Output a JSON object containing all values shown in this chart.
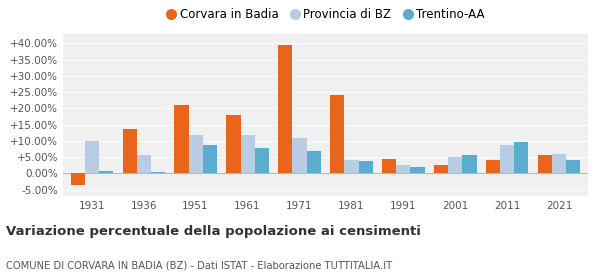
{
  "years": [
    1931,
    1936,
    1951,
    1961,
    1971,
    1981,
    1991,
    2001,
    2011,
    2021
  ],
  "corvara": [
    -3.5,
    13.5,
    21.0,
    18.0,
    39.5,
    24.0,
    4.5,
    2.5,
    4.0,
    5.5
  ],
  "provincia_bz": [
    9.8,
    5.7,
    11.8,
    11.8,
    10.8,
    4.0,
    2.5,
    5.0,
    8.8,
    5.8
  ],
  "trentino_aa": [
    0.8,
    0.3,
    8.8,
    7.8,
    6.8,
    3.8,
    2.0,
    5.5,
    9.5,
    4.2
  ],
  "color_corvara": "#e8651a",
  "color_provincia": "#b8cce4",
  "color_trentino": "#5aadce",
  "bg_color": "#f0f0f0",
  "title": "Variazione percentuale della popolazione ai censimenti",
  "subtitle": "COMUNE DI CORVARA IN BADIA (BZ) - Dati ISTAT - Elaborazione TUTTITALIA.IT",
  "ylim_min": -7.0,
  "ylim_max": 43.0,
  "yticks": [
    -5.0,
    0.0,
    5.0,
    10.0,
    15.0,
    20.0,
    25.0,
    30.0,
    35.0,
    40.0
  ],
  "bar_width": 0.27,
  "legend_labels": [
    "Corvara in Badia",
    "Provincia di BZ",
    "Trentino-AA"
  ]
}
